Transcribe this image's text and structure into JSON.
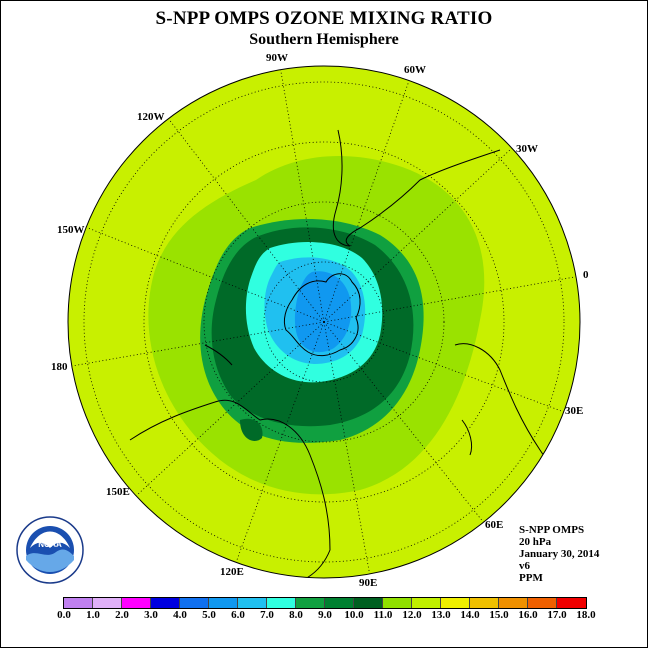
{
  "title": "S-NPP OMPS OZONE MIXING RATIO",
  "subtitle": "Southern Hemisphere",
  "longitude_labels": [
    {
      "text": "90W"
    },
    {
      "text": "60W"
    },
    {
      "text": "120W"
    },
    {
      "text": "30W"
    },
    {
      "text": "150W"
    },
    {
      "text": "0"
    },
    {
      "text": "180"
    },
    {
      "text": "30E"
    },
    {
      "text": "150E"
    },
    {
      "text": "60E"
    },
    {
      "text": "120E"
    },
    {
      "text": "90E"
    }
  ],
  "info": {
    "instrument": "S-NPP OMPS",
    "level": "20 hPa",
    "date": "January 30, 2014",
    "version": "v6",
    "units": "PPM"
  },
  "logo": {
    "text": "NOAA",
    "icon": "noaa-logo-icon"
  },
  "colorbar": {
    "labels": [
      "0.0",
      "1.0",
      "2.0",
      "3.0",
      "4.0",
      "5.0",
      "6.0",
      "7.0",
      "8.0",
      "9.0",
      "10.0",
      "11.0",
      "12.0",
      "13.0",
      "14.0",
      "15.0",
      "16.0",
      "17.0",
      "18.0"
    ],
    "colors": [
      "#c080f0",
      "#e0b0f8",
      "#ff00ff",
      "#0000e0",
      "#1070f0",
      "#1098f0",
      "#20c0f0",
      "#30ffe0",
      "#10a040",
      "#008030",
      "#006020",
      "#90e000",
      "#c0f000",
      "#f0f000",
      "#f0c000",
      "#f09000",
      "#f06000",
      "#f00000",
      "#906040"
    ]
  },
  "map_colors": {
    "ocean_background": "#c8f000",
    "band_11": "#9ae200",
    "band_9": "#10a040",
    "band_10": "#006a28",
    "band_8": "#30ffe0",
    "band_7": "#20c0f0",
    "band_6": "#1098f0"
  }
}
